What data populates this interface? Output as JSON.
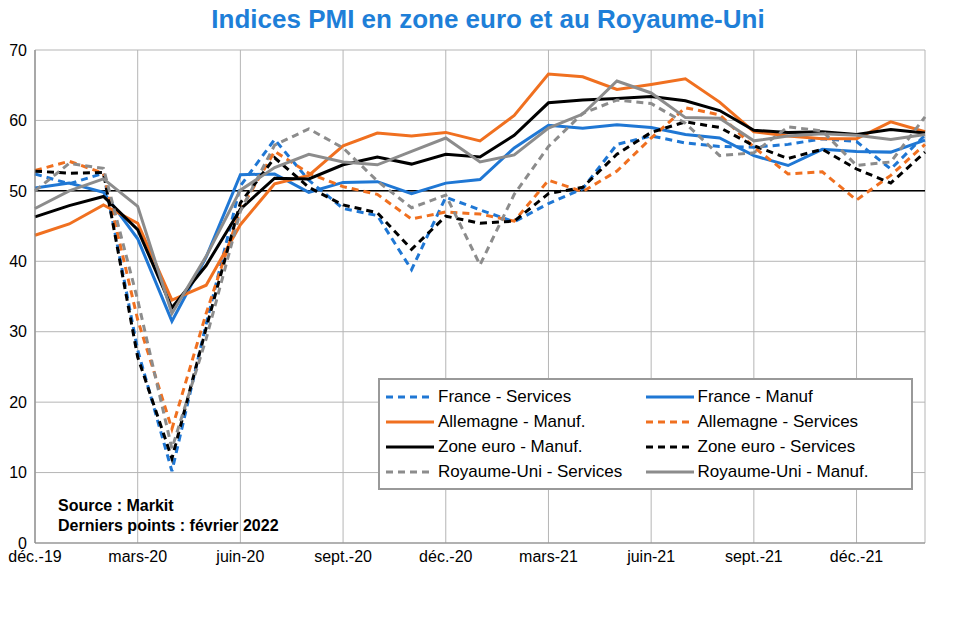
{
  "chart_data": {
    "type": "line",
    "title": "Indices PMI en zone euro et au Royaume-Uni",
    "categories": [
      "déc.-19",
      null,
      null,
      "mars-20",
      null,
      null,
      "juin-20",
      null,
      null,
      "sept.-20",
      null,
      null,
      "déc.-20",
      null,
      null,
      "mars-21",
      null,
      null,
      "juin-21",
      null,
      null,
      "sept.-21",
      null,
      null,
      "déc.-21",
      null,
      null
    ],
    "series": [
      {
        "name": "France - Services",
        "color": "#1f77d4",
        "line_style": "dashed",
        "values": [
          52.4,
          51.0,
          52.5,
          27.4,
          10.2,
          31.1,
          50.7,
          57.3,
          51.5,
          47.5,
          46.5,
          38.8,
          49.1,
          47.3,
          45.6,
          48.2,
          50.3,
          56.6,
          57.8,
          56.8,
          56.3,
          56.2,
          56.6,
          57.4,
          57.0,
          53.1,
          57.9
        ]
      },
      {
        "name": "France - Manuf",
        "color": "#1f77d4",
        "line_style": "solid",
        "values": [
          50.4,
          51.1,
          49.8,
          43.2,
          31.5,
          40.6,
          52.3,
          52.4,
          49.8,
          51.2,
          51.3,
          49.6,
          51.1,
          51.6,
          56.1,
          59.3,
          58.9,
          59.4,
          59.0,
          58.0,
          57.5,
          55.0,
          53.6,
          55.9,
          55.6,
          55.5,
          57.2
        ]
      },
      {
        "name": "Allemagne - Manuf.",
        "color": "#f07020",
        "line_style": "solid",
        "values": [
          43.7,
          45.3,
          48.0,
          45.4,
          34.5,
          36.6,
          45.2,
          51.0,
          52.2,
          56.4,
          58.2,
          57.8,
          58.3,
          57.1,
          60.7,
          66.6,
          66.2,
          64.4,
          65.1,
          65.9,
          62.6,
          58.4,
          57.8,
          57.4,
          57.4,
          59.8,
          58.4
        ]
      },
      {
        "name": "Allemagne - Services",
        "color": "#f07020",
        "line_style": "dashed",
        "values": [
          52.9,
          54.2,
          52.5,
          31.7,
          16.2,
          32.6,
          47.3,
          55.6,
          52.5,
          50.6,
          49.5,
          46.0,
          47.0,
          46.7,
          45.7,
          51.5,
          49.9,
          52.8,
          57.5,
          61.8,
          60.8,
          56.2,
          52.4,
          52.7,
          48.7,
          52.2,
          56.6
        ]
      },
      {
        "name": "Zone euro - Manuf.",
        "color": "#000000",
        "line_style": "solid",
        "values": [
          46.3,
          47.9,
          49.2,
          44.5,
          33.4,
          39.4,
          47.4,
          51.8,
          51.7,
          53.7,
          54.8,
          53.8,
          55.2,
          54.8,
          57.9,
          62.5,
          62.9,
          63.1,
          63.4,
          62.8,
          61.4,
          58.6,
          58.3,
          58.4,
          58.0,
          58.7,
          58.2
        ]
      },
      {
        "name": "Zone euro - Services",
        "color": "#000000",
        "line_style": "dashed",
        "values": [
          52.8,
          52.5,
          52.6,
          26.4,
          12.0,
          30.5,
          48.3,
          54.7,
          50.5,
          48.0,
          46.9,
          41.7,
          46.4,
          45.4,
          45.7,
          49.6,
          50.5,
          55.2,
          58.3,
          59.8,
          59.0,
          56.4,
          54.6,
          55.9,
          53.1,
          51.1,
          55.5
        ]
      },
      {
        "name": "Royaume-Uni - Services",
        "color": "#8c8c8c",
        "line_style": "dashed",
        "values": [
          50.0,
          53.9,
          53.2,
          34.5,
          13.4,
          29.0,
          47.1,
          56.5,
          58.8,
          56.1,
          51.4,
          47.6,
          49.4,
          39.5,
          49.5,
          56.3,
          61.0,
          62.9,
          62.4,
          59.6,
          55.0,
          55.4,
          59.1,
          58.5,
          53.6,
          54.1,
          60.5
        ]
      },
      {
        "name": "Royaume-Uni - Manuf.",
        "color": "#8c8c8c",
        "line_style": "solid",
        "values": [
          47.5,
          50.0,
          51.7,
          47.8,
          32.6,
          40.7,
          50.1,
          53.3,
          55.2,
          54.1,
          53.7,
          55.6,
          57.5,
          54.1,
          55.1,
          58.9,
          60.9,
          65.6,
          63.9,
          60.4,
          60.3,
          57.1,
          57.8,
          58.1,
          57.9,
          57.3,
          58.0
        ]
      }
    ],
    "ylim": [
      0,
      70
    ],
    "yticks": [
      0,
      10,
      20,
      30,
      40,
      50,
      60,
      70
    ],
    "reference_line": 50,
    "grid": true,
    "legend": "bottom right",
    "annotations": [
      "Source : Markit",
      "Derniers points : février 2022"
    ]
  }
}
